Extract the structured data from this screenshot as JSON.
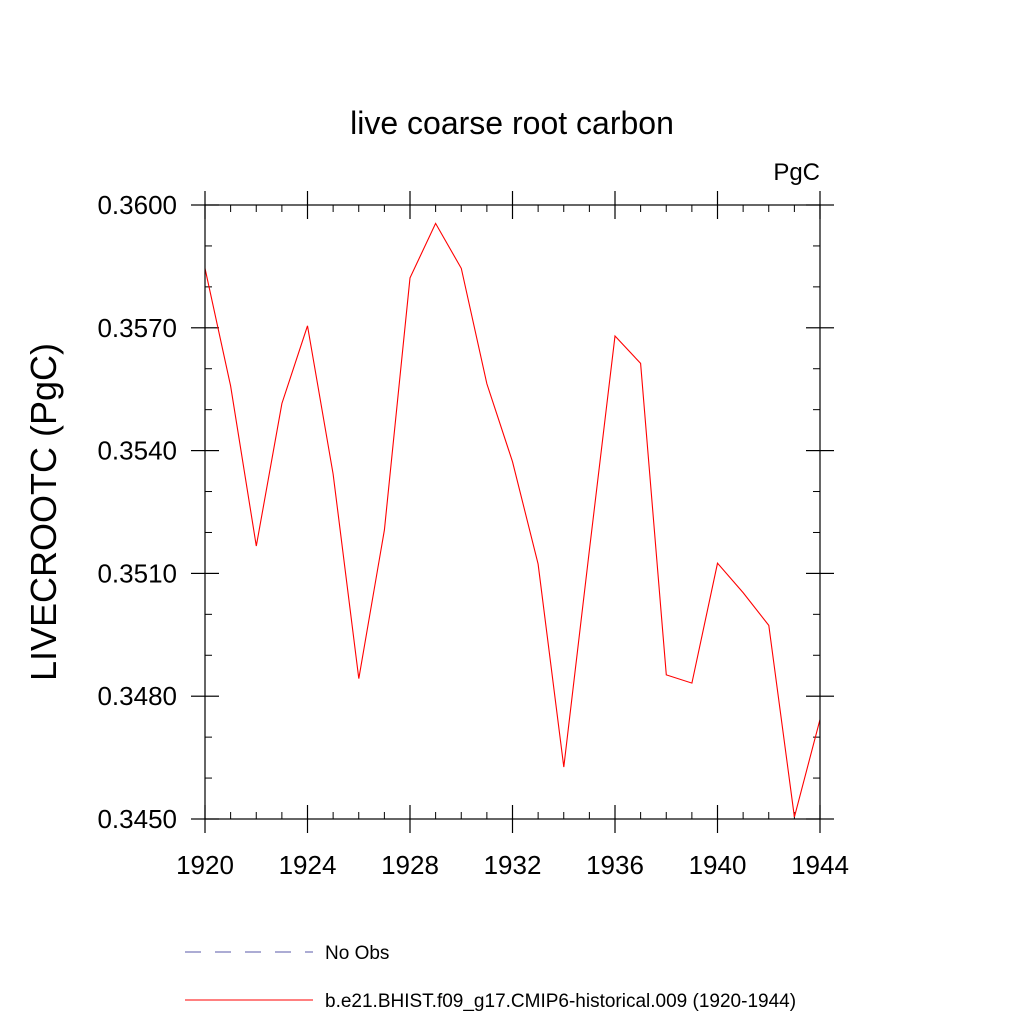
{
  "chart_data": {
    "type": "line",
    "title": "live coarse root carbon",
    "unit_label": "PgC",
    "ylabel": "LIVECROOTC  (PgC)",
    "xlabel": "",
    "xlim": [
      1920,
      1944
    ],
    "ylim": [
      0.345,
      0.36
    ],
    "x_ticks": [
      1920,
      1924,
      1928,
      1932,
      1936,
      1940,
      1944
    ],
    "x_tick_labels": [
      "1920",
      "1924",
      "1928",
      "1932",
      "1936",
      "1940",
      "1944"
    ],
    "y_ticks": [
      0.345,
      0.348,
      0.351,
      0.354,
      0.357,
      0.36
    ],
    "y_tick_labels": [
      "0.3450",
      "0.3480",
      "0.3510",
      "0.3540",
      "0.3570",
      "0.3600"
    ],
    "y_minor_step": 0.001,
    "x_minor_step": 1,
    "grid": false,
    "legend_placement": "bottom",
    "series": [
      {
        "name": "b.e21.BHIST.f09_g17.CMIP6-historical.009 (1920-1944)",
        "color": "#ff0000",
        "style": "solid",
        "x": [
          1920,
          1921,
          1922,
          1923,
          1924,
          1925,
          1926,
          1927,
          1928,
          1929,
          1930,
          1931,
          1932,
          1933,
          1934,
          1935,
          1936,
          1937,
          1938,
          1939,
          1940,
          1941,
          1942,
          1943,
          1944
        ],
        "y": [
          0.35845,
          0.35558,
          0.35167,
          0.35515,
          0.35705,
          0.35343,
          0.34843,
          0.35206,
          0.35822,
          0.35955,
          0.35845,
          0.35563,
          0.35373,
          0.35123,
          0.34627,
          0.35157,
          0.3568,
          0.35613,
          0.34852,
          0.34832,
          0.35125,
          0.35053,
          0.34973,
          0.34505,
          0.34743
        ]
      }
    ],
    "legend": [
      {
        "label": "No Obs",
        "color": "#5a5aa8",
        "style": "dashed"
      },
      {
        "label": "b.e21.BHIST.f09_g17.CMIP6-historical.009 (1920-1944)",
        "color": "#ff0000",
        "style": "solid"
      }
    ]
  }
}
